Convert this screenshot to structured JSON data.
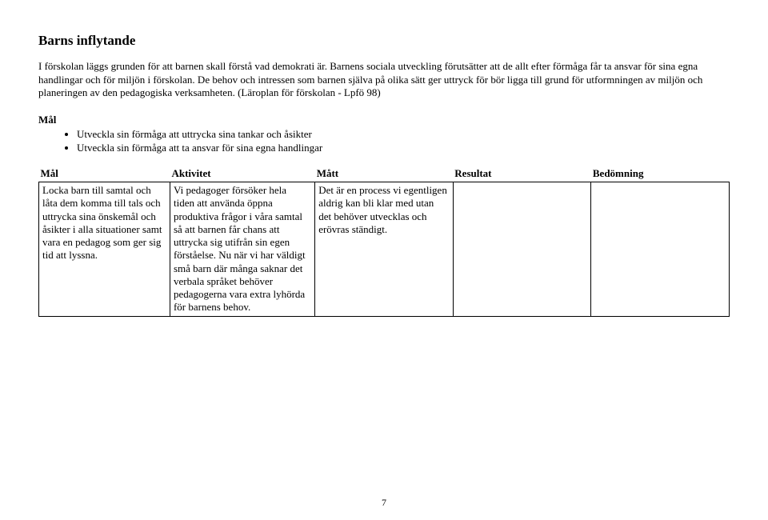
{
  "title": "Barns inflytande",
  "intro": "I förskolan läggs grunden för att barnen skall förstå vad demokrati är. Barnens sociala utveckling förutsätter att de allt efter förmåga får ta ansvar för sina egna handlingar och för miljön i förskolan. De behov och intressen som barnen själva på olika sätt ger uttryck för bör ligga till grund för utformningen av miljön och planeringen av den pedagogiska verksamheten. (Läroplan för förskolan - Lpfö 98)",
  "mal_heading": "Mål",
  "bullets": [
    "Utveckla sin förmåga att uttrycka sina tankar och åsikter",
    "Utveckla sin förmåga att ta ansvar för sina egna handlingar"
  ],
  "table": {
    "headers": {
      "mal": "Mål",
      "aktivitet": "Aktivitet",
      "matt": "Mått",
      "resultat": "Resultat",
      "bedomning": "Bedömning"
    },
    "row": {
      "mal": "Locka barn till samtal och låta dem komma till tals och uttrycka sina önskemål och åsikter i alla situationer samt vara en pedagog som ger sig tid att lyssna.",
      "aktivitet": "Vi pedagoger försöker hela tiden att använda öppna produktiva frågor i våra samtal så att barnen får chans att uttrycka sig utifrån sin egen förståelse. Nu när vi har väldigt små barn där många saknar det verbala språket behöver pedagogerna vara extra lyhörda för barnens behov.",
      "matt": "Det är en process vi egentligen aldrig kan bli klar med utan det behöver utvecklas och erövras ständigt.",
      "resultat": "",
      "bedomning": ""
    }
  },
  "page_number": "7"
}
